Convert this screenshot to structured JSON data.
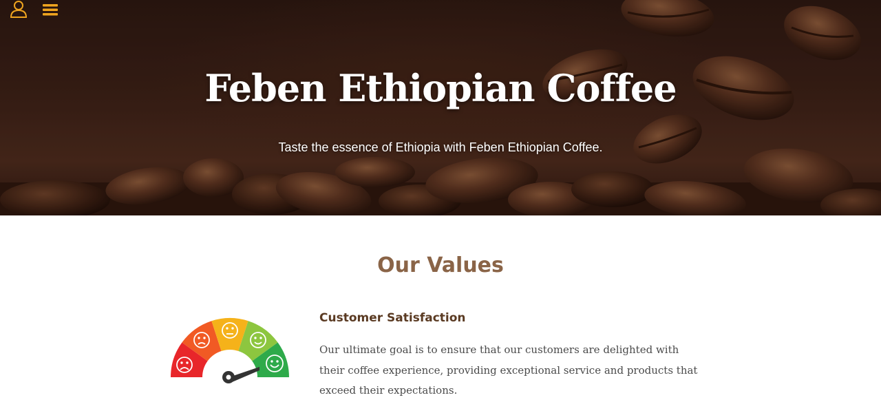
{
  "header": {
    "user_icon": "user-icon",
    "menu_icon": "hamburger-menu-icon",
    "accent_color": "#f0a51f"
  },
  "hero": {
    "title": "Feben Ethiopian Coffee",
    "subtitle": "Taste the essence of Ethiopia with Feben Ethiopian Coffee."
  },
  "values": {
    "heading": "Our Values",
    "items": [
      {
        "icon": "satisfaction-gauge-icon",
        "title": "Customer Satisfaction",
        "text": "Our ultimate goal is to ensure that our customers are delighted with their coffee experience, providing exceptional service and products that exceed their expectations."
      }
    ]
  }
}
